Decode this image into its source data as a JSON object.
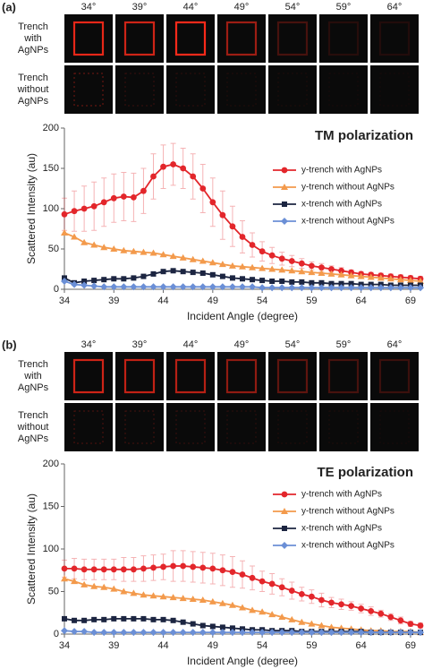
{
  "panels": [
    {
      "label": "(a)",
      "angles": [
        "34°",
        "39°",
        "44°",
        "49°",
        "54°",
        "59°",
        "64°"
      ],
      "rows": [
        [
          "Trench",
          "with",
          "AgNPs"
        ],
        [
          "Trench",
          "without",
          "AgNPs"
        ]
      ]
    },
    {
      "label": "(b)",
      "angles": [
        "34°",
        "39°",
        "44°",
        "49°",
        "54°",
        "59°",
        "64°"
      ],
      "rows": [
        [
          "Trench",
          "with",
          "AgNPs"
        ],
        [
          "Trench",
          "without",
          "AgNPs"
        ]
      ]
    }
  ],
  "chart_data": [
    {
      "type": "line",
      "title": "TM polarization",
      "xlabel": "Incident Angle (degree)",
      "ylabel": "Scattered Intensity (au)",
      "x": [
        34,
        35,
        36,
        37,
        38,
        39,
        40,
        41,
        42,
        43,
        44,
        45,
        46,
        47,
        48,
        49,
        50,
        51,
        52,
        53,
        54,
        55,
        56,
        57,
        58,
        59,
        60,
        61,
        62,
        63,
        64,
        65,
        66,
        67,
        68,
        69,
        70
      ],
      "xlim": [
        34,
        70
      ],
      "ylim": [
        0,
        200
      ],
      "xticks": [
        34,
        39,
        44,
        49,
        54,
        59,
        64,
        69
      ],
      "yticks": [
        0,
        50,
        100,
        150,
        200
      ],
      "legend": "right",
      "series": [
        {
          "name": "y-trench with AgNPs",
          "color": "#e3262b",
          "marker": "circle",
          "values": [
            93,
            97,
            100,
            103,
            108,
            113,
            115,
            114,
            122,
            140,
            152,
            155,
            150,
            140,
            125,
            108,
            92,
            78,
            65,
            55,
            47,
            42,
            38,
            35,
            32,
            29,
            27,
            25,
            23,
            21,
            19,
            18,
            17,
            16,
            15,
            14,
            13
          ],
          "errors": [
            20,
            25,
            28,
            30,
            30,
            30,
            30,
            30,
            28,
            28,
            27,
            26,
            25,
            28,
            30,
            30,
            30,
            25,
            20,
            15,
            12,
            10,
            8,
            7,
            6,
            5,
            5,
            4,
            4,
            3,
            3,
            3,
            3,
            3,
            3,
            3,
            3
          ]
        },
        {
          "name": "y-trench without AgNPs",
          "color": "#f39a4c",
          "marker": "triangle",
          "values": [
            70,
            65,
            58,
            55,
            52,
            50,
            48,
            47,
            46,
            45,
            43,
            41,
            39,
            37,
            35,
            33,
            31,
            29,
            28,
            27,
            26,
            25,
            24,
            23,
            22,
            21,
            20,
            19,
            18,
            17,
            16,
            15,
            14,
            13,
            12,
            11,
            10
          ]
        },
        {
          "name": "x-trench with AgNPs",
          "color": "#1c2541",
          "marker": "square",
          "values": [
            14,
            8,
            10,
            11,
            12,
            13,
            13,
            14,
            16,
            19,
            22,
            23,
            22,
            21,
            20,
            18,
            16,
            14,
            13,
            12,
            11,
            10,
            10,
            9,
            9,
            8,
            8,
            7,
            7,
            7,
            6,
            6,
            6,
            5,
            5,
            5,
            5
          ]
        },
        {
          "name": "x-trench without AgNPs",
          "color": "#6b8fd6",
          "marker": "diamond",
          "values": [
            10,
            6,
            5,
            4,
            3,
            3,
            3,
            3,
            3,
            3,
            3,
            3,
            3,
            3,
            3,
            3,
            3,
            3,
            3,
            3,
            2,
            2,
            2,
            2,
            2,
            2,
            2,
            2,
            2,
            2,
            2,
            2,
            2,
            2,
            2,
            2,
            2
          ]
        }
      ]
    },
    {
      "type": "line",
      "title": "TE polarization",
      "xlabel": "Incident Angle (degree)",
      "ylabel": "Scattered Intensity (au)",
      "x": [
        34,
        35,
        36,
        37,
        38,
        39,
        40,
        41,
        42,
        43,
        44,
        45,
        46,
        47,
        48,
        49,
        50,
        51,
        52,
        53,
        54,
        55,
        56,
        57,
        58,
        59,
        60,
        61,
        62,
        63,
        64,
        65,
        66,
        67,
        68,
        69,
        70
      ],
      "xlim": [
        34,
        70
      ],
      "ylim": [
        0,
        200
      ],
      "xticks": [
        34,
        39,
        44,
        49,
        54,
        59,
        64,
        69
      ],
      "yticks": [
        0,
        50,
        100,
        150,
        200
      ],
      "legend": "right",
      "series": [
        {
          "name": "y-trench with AgNPs",
          "color": "#e3262b",
          "marker": "circle",
          "values": [
            77,
            77,
            76,
            76,
            76,
            76,
            76,
            76,
            77,
            78,
            79,
            80,
            80,
            79,
            78,
            77,
            75,
            73,
            70,
            66,
            62,
            59,
            55,
            51,
            47,
            44,
            40,
            37,
            35,
            33,
            30,
            27,
            24,
            20,
            16,
            12,
            10
          ],
          "errors": [
            10,
            12,
            12,
            12,
            12,
            12,
            14,
            14,
            15,
            15,
            15,
            18,
            18,
            18,
            18,
            18,
            18,
            18,
            16,
            14,
            12,
            12,
            10,
            10,
            8,
            8,
            8,
            6,
            6,
            5,
            5,
            5,
            4,
            4,
            4,
            3,
            3
          ]
        },
        {
          "name": "y-trench without AgNPs",
          "color": "#f39a4c",
          "marker": "triangle",
          "values": [
            65,
            62,
            58,
            56,
            55,
            53,
            50,
            48,
            46,
            45,
            44,
            43,
            42,
            41,
            40,
            38,
            36,
            34,
            31,
            28,
            26,
            23,
            20,
            17,
            14,
            12,
            10,
            8,
            7,
            6,
            5,
            4,
            4,
            3,
            3,
            3,
            2
          ]
        },
        {
          "name": "x-trench with AgNPs",
          "color": "#1c2541",
          "marker": "square",
          "values": [
            18,
            16,
            16,
            17,
            17,
            18,
            18,
            18,
            18,
            17,
            17,
            16,
            14,
            12,
            10,
            9,
            8,
            7,
            6,
            5,
            5,
            4,
            4,
            4,
            3,
            3,
            3,
            3,
            3,
            3,
            3,
            2,
            2,
            2,
            2,
            2,
            2
          ]
        },
        {
          "name": "x-trench without AgNPs",
          "color": "#6b8fd6",
          "marker": "diamond",
          "values": [
            4,
            3,
            3,
            2,
            2,
            2,
            2,
            2,
            2,
            2,
            2,
            2,
            2,
            2,
            2,
            2,
            2,
            2,
            2,
            2,
            2,
            2,
            2,
            2,
            2,
            2,
            2,
            2,
            2,
            2,
            2,
            2,
            2,
            2,
            2,
            2,
            2
          ]
        }
      ]
    }
  ]
}
